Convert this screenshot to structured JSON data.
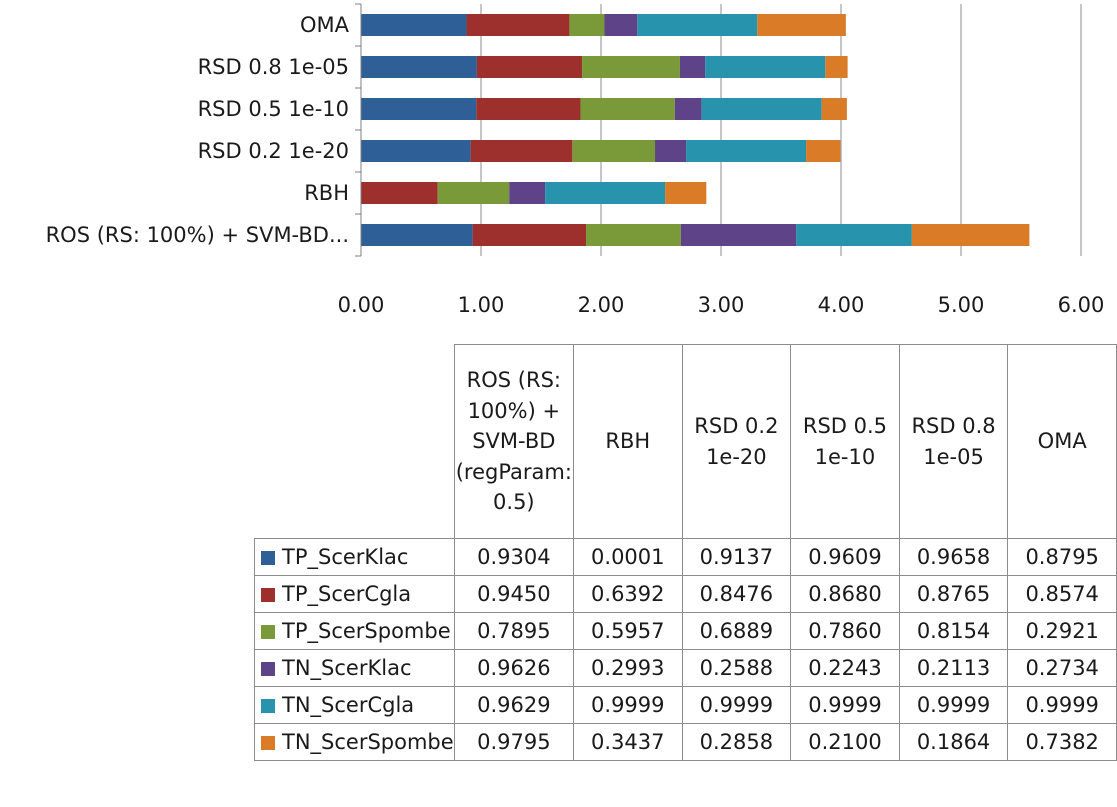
{
  "chart_data": {
    "type": "bar",
    "orientation": "horizontal",
    "stacked": true,
    "categories": [
      "ROS (RS: 100%) + SVM-BD (regParam: 0.5)",
      "RBH",
      "RSD 0.2 1e-20",
      "RSD 0.5 1e-10",
      "RSD  0.8 1e-05",
      "OMA"
    ],
    "category_axis_labels": [
      "ROS (RS: 100%) + SVM-BD...",
      "RBH",
      "RSD 0.2 1e-20",
      "RSD 0.5 1e-10",
      "RSD  0.8 1e-05",
      "OMA"
    ],
    "table_headers": [
      "ROS (RS:\n100%) +\nSVM-BD\n(regParam:\n0.5)",
      "RBH",
      "RSD 0.2\n1e-20",
      "RSD 0.5\n1e-10",
      "RSD  0.8\n1e-05",
      "OMA"
    ],
    "series": [
      {
        "name": "TP_ScerKlac",
        "color": "#2e5f96",
        "values": [
          "0.9304",
          "0.0001",
          "0.9137",
          "0.9609",
          "0.9658",
          "0.8795"
        ]
      },
      {
        "name": "TP_ScerCgla",
        "color": "#9d2f2d",
        "values": [
          "0.9450",
          "0.6392",
          "0.8476",
          "0.8680",
          "0.8765",
          "0.8574"
        ]
      },
      {
        "name": "TP_ScerSpombe",
        "color": "#7a9a3a",
        "values": [
          "0.7895",
          "0.5957",
          "0.6889",
          "0.7860",
          "0.8154",
          "0.2921"
        ]
      },
      {
        "name": "TN_ScerKlac",
        "color": "#5e4389",
        "values": [
          "0.9626",
          "0.2993",
          "0.2588",
          "0.2243",
          "0.2113",
          "0.2734"
        ]
      },
      {
        "name": "TN_ScerCgla",
        "color": "#2893ad",
        "values": [
          "0.9629",
          "0.9999",
          "0.9999",
          "0.9999",
          "0.9999",
          "0.9999"
        ]
      },
      {
        "name": "TN_ScerSpombe",
        "color": "#d97b27",
        "values": [
          "0.9795",
          "0.3437",
          "0.2858",
          "0.2100",
          "0.1864",
          "0.7382"
        ]
      }
    ],
    "x_ticks": [
      "0.00",
      "1.00",
      "2.00",
      "3.00",
      "4.00",
      "5.00",
      "6.00"
    ],
    "xlim": [
      0,
      6
    ],
    "grid": true,
    "legend": "data-table"
  }
}
